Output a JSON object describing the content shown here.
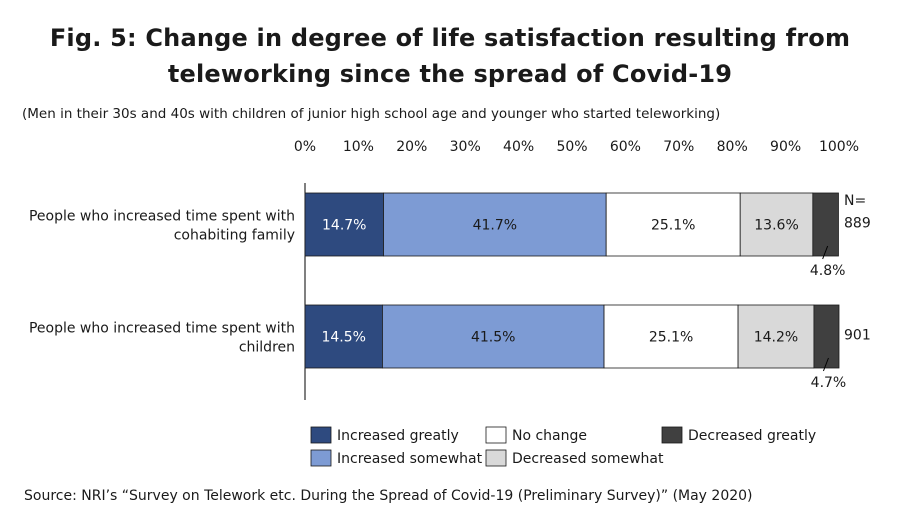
{
  "chart_data": {
    "type": "bar",
    "orientation": "horizontal",
    "stacked": true,
    "title_lines": [
      "Fig. 5: Change in degree of life satisfaction resulting from",
      "teleworking since the spread of Covid-19"
    ],
    "subtitle": "(Men in their 30s and 40s with children of junior high school age and younger who started teleworking)",
    "source": "Source: NRI’s “Survey on Telework etc. During the Spread of Covid-19 (Preliminary Survey)” (May 2020)",
    "xlim": [
      0,
      100
    ],
    "x_ticks": [
      "0%",
      "10%",
      "20%",
      "30%",
      "40%",
      "50%",
      "60%",
      "70%",
      "80%",
      "90%",
      "100%"
    ],
    "n_header": "N=",
    "categories": [
      {
        "label_lines": [
          "People who increased time spent with",
          "cohabiting family"
        ],
        "n": "889"
      },
      {
        "label_lines": [
          "People who increased time spent with",
          "children"
        ],
        "n": "901"
      }
    ],
    "series": [
      {
        "name": "Increased greatly",
        "color": "#2e4a7f",
        "label_color": "#ffffff",
        "values": [
          14.7,
          14.5
        ],
        "labels": [
          "14.7%",
          "14.5%"
        ]
      },
      {
        "name": "Increased somewhat",
        "color": "#7d9bd4",
        "label_color": "#1a1a1a",
        "values": [
          41.7,
          41.5
        ],
        "labels": [
          "41.7%",
          "41.5%"
        ]
      },
      {
        "name": "No change",
        "color": "#ffffff",
        "label_color": "#1a1a1a",
        "values": [
          25.1,
          25.1
        ],
        "labels": [
          "25.1%",
          "25.1%"
        ]
      },
      {
        "name": "Decreased somewhat",
        "color": "#d9d9d9",
        "label_color": "#1a1a1a",
        "values": [
          13.6,
          14.2
        ],
        "labels": [
          "13.6%",
          "14.2%"
        ]
      },
      {
        "name": "Decreased greatly",
        "color": "#404040",
        "label_color": "#1a1a1a",
        "values": [
          4.8,
          4.7
        ],
        "labels": [
          "4.8%",
          "4.7%"
        ],
        "label_outside": true
      }
    ],
    "legend_order": [
      "Increased greatly",
      "No change",
      "Decreased greatly",
      "Increased somewhat",
      "Decreased somewhat"
    ],
    "grid": false
  }
}
